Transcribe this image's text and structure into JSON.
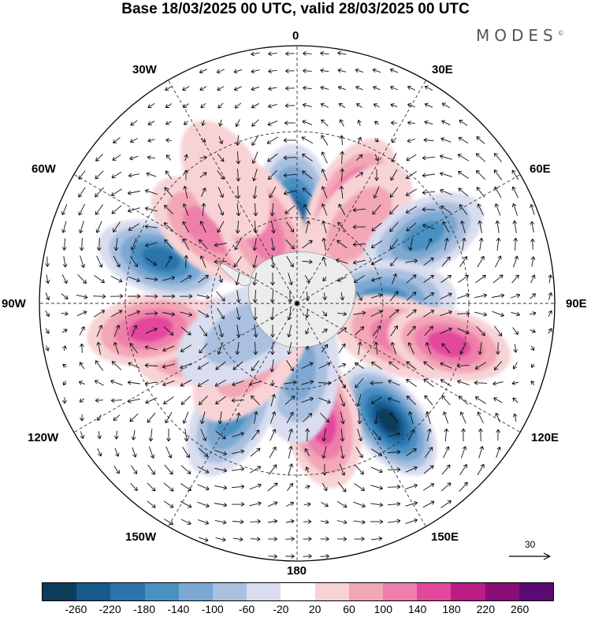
{
  "title": "Base 18/03/2025 00 UTC, valid 28/03/2025 00 UTC",
  "brand": "MODES",
  "brand_mark": "©",
  "longitude_labels": {
    "lon_0": "0",
    "lon_30e": "30E",
    "lon_60e": "60E",
    "lon_90e": "90E",
    "lon_120e": "120E",
    "lon_150e": "150E",
    "lon_180": "180",
    "lon_150w": "150W",
    "lon_120w": "120W",
    "lon_90w": "90W",
    "lon_60w": "60W",
    "lon_30w": "30W"
  },
  "reference_vector_label": "30",
  "colorbar": {
    "colors": [
      "#0d3b5a",
      "#16598d",
      "#2a74ad",
      "#4a90c2",
      "#7ba8d2",
      "#a9c0e0",
      "#d9ddef",
      "#ffffff",
      "#f7d3d6",
      "#f3a6b6",
      "#ee7fab",
      "#e2479b",
      "#bd1b85",
      "#8a0c76",
      "#5b0a74"
    ],
    "tick_labels": [
      "-260",
      "-220",
      "-180",
      "-140",
      "-100",
      "-60",
      "-20",
      "20",
      "60",
      "100",
      "140",
      "180",
      "220",
      "260"
    ]
  },
  "anomaly_centers": [
    {
      "lon": -2,
      "colat": 30,
      "value": -230
    },
    {
      "lon": 28,
      "colat": 40,
      "value": 120
    },
    {
      "lon": 38,
      "colat": 35,
      "value": 40
    },
    {
      "lon": 62,
      "colat": 50,
      "value": -130
    },
    {
      "lon": 88,
      "colat": 30,
      "value": -120
    },
    {
      "lon": 108,
      "colat": 38,
      "value": 100
    },
    {
      "lon": 105,
      "colat": 55,
      "value": 120
    },
    {
      "lon": 142,
      "colat": 52,
      "value": -240
    },
    {
      "lon": 168,
      "colat": 42,
      "value": 140
    },
    {
      "lon": 180,
      "colat": 22,
      "value": -80
    },
    {
      "lon": -150,
      "colat": 45,
      "value": -140
    },
    {
      "lon": -140,
      "colat": 25,
      "value": 70
    },
    {
      "lon": -112,
      "colat": 35,
      "value": 120
    },
    {
      "lon": -100,
      "colat": 52,
      "value": 150
    },
    {
      "lon": -72,
      "colat": 50,
      "value": -160
    },
    {
      "lon": -50,
      "colat": 40,
      "value": 110
    },
    {
      "lon": -25,
      "colat": 28,
      "value": 90
    },
    {
      "lon": -30,
      "colat": 50,
      "value": 30
    },
    {
      "lon": -120,
      "colat": 20,
      "value": -50
    }
  ]
}
